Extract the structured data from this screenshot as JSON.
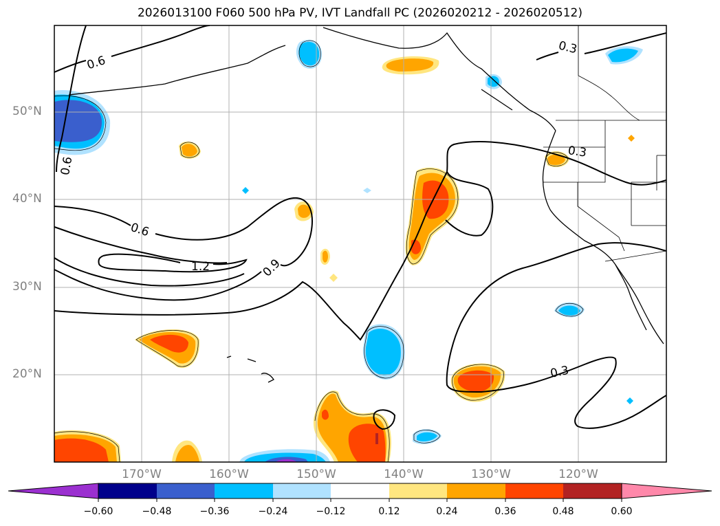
{
  "title": "2026013100 F060 500 hPa PV, IVT Landfall PC (2026020212 - 2026020512)",
  "map": {
    "latitude_labels": [
      "50°N",
      "40°N",
      "30°N",
      "20°N"
    ],
    "longitude_labels": [
      "170°W",
      "160°W",
      "150°W",
      "140°W",
      "130°W",
      "120°W"
    ],
    "contour_labels": [
      "0.6",
      "0.6",
      "0.6",
      "1.2",
      "0.9",
      "0.3",
      "0.3",
      "0.3"
    ]
  },
  "colorbar": {
    "tick_labels": [
      "−0.60",
      "−0.48",
      "−0.36",
      "−0.24",
      "−0.12",
      "0.12",
      "0.24",
      "0.36",
      "0.48",
      "0.60"
    ],
    "colors": [
      "#9b30d0",
      "#00008b",
      "#3a5fcd",
      "#00bfff",
      "#b0e2ff",
      "#ffffff",
      "#ffe680",
      "#ffa500",
      "#ff4500",
      "#b22222",
      "#ff88aa"
    ],
    "extend": "both"
  },
  "colors": {
    "neg_weak": "#b0e2ff",
    "neg_mid": "#00bfff",
    "neg_strong": "#3a5fcd",
    "neg_purple": "#9b30d0",
    "pos_weak": "#ffe680",
    "pos_mid": "#ffa500",
    "pos_strong": "#ff4500"
  }
}
